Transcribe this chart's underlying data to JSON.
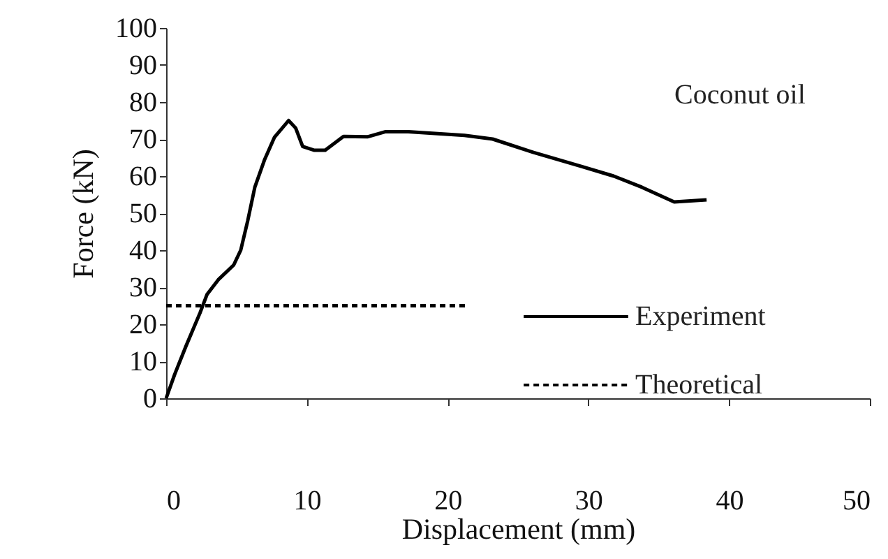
{
  "chart_data": {
    "type": "line",
    "xlabel": "Displacement (mm)",
    "ylabel": "Force (kN)",
    "annotations": [
      "Coconut oil"
    ],
    "xlim": [
      0,
      50
    ],
    "xticks": [
      0,
      10,
      20,
      30,
      40,
      50
    ],
    "ylim": [
      0,
      100
    ],
    "yticks": [
      0,
      10,
      20,
      30,
      40,
      50,
      60,
      70,
      80,
      90,
      100
    ],
    "grid": false,
    "legend": "right",
    "marker": "none",
    "series": [
      {
        "name": "Experiment",
        "color": "#000000",
        "line_style": "solid",
        "x": [
          0,
          0.6,
          1.4,
          2.4,
          2.9,
          3.7,
          4.8,
          5.3,
          5.8,
          6.3,
          7.0,
          7.7,
          8.7,
          9.2,
          9.7,
          10.5,
          11.3,
          12.6,
          14.3,
          15.6,
          17.2,
          21.2,
          23.2,
          26.1,
          29.5,
          31.8,
          33.8,
          36.1,
          38.4
        ],
        "values": [
          0,
          6.4,
          14,
          23,
          28,
          32,
          36,
          40,
          48,
          57,
          64.5,
          70.5,
          75,
          73,
          68,
          67,
          67,
          70.7,
          70.6,
          72,
          72,
          71,
          70,
          66.4,
          62.6,
          60,
          57,
          53,
          53.6
        ]
      },
      {
        "name": "Theoretical",
        "color": "#000000",
        "line_style": "dashed",
        "x": [
          0,
          21.4
        ],
        "values": [
          25,
          25
        ]
      }
    ]
  }
}
